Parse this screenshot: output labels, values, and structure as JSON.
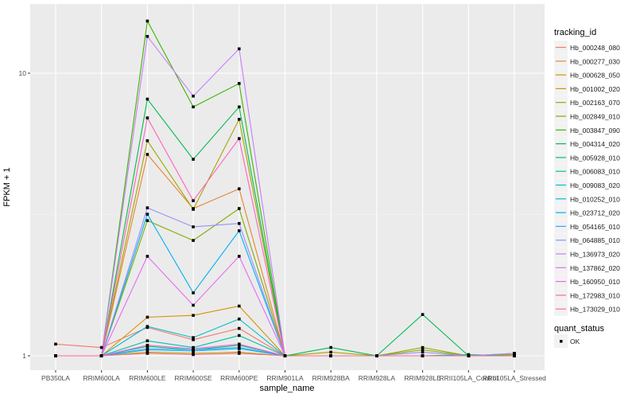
{
  "chart_data": {
    "type": "line",
    "title": "",
    "xlabel": "sample_name",
    "ylabel": "FPKM + 1",
    "y_scale": "log10",
    "ylim": [
      0.95,
      17
    ],
    "y_ticks": [
      1,
      10
    ],
    "y_tick_labels": [
      "1",
      "10"
    ],
    "grid": true,
    "legend_placement": "right",
    "categories": [
      "PB350LA",
      "RRIM600LA",
      "RRIM600LE",
      "RRIM600SE",
      "RRIM600PE",
      "RRIM901LA",
      "RRIM928BA",
      "RRIM928LA",
      "RRIM928LE",
      "RRII105LA_Control",
      "RRII105LA_Stressed"
    ],
    "legend_title": "tracking_id",
    "shape_legend_title": "quant_status",
    "shape_legend_entries": [
      "OK"
    ],
    "series": [
      {
        "name": "Hb_000248_080",
        "color": "#F8766D",
        "values": [
          1.1,
          1.07,
          1.26,
          1.14,
          1.25,
          1.0,
          1.0,
          1.0,
          1.0,
          1.0,
          1.01
        ]
      },
      {
        "name": "Hb_000277_030",
        "color": "#EA8331",
        "values": [
          1.0,
          1.0,
          5.16,
          3.32,
          3.9,
          1.0,
          1.0,
          1.0,
          1.0,
          1.0,
          1.0
        ]
      },
      {
        "name": "Hb_000628_050",
        "color": "#D89000",
        "values": [
          1.0,
          1.0,
          1.37,
          1.39,
          1.5,
          1.0,
          1.0,
          1.0,
          1.0,
          1.0,
          1.0
        ]
      },
      {
        "name": "Hb_001002_020",
        "color": "#C09B00",
        "values": [
          1.0,
          1.0,
          1.03,
          1.02,
          1.03,
          1.0,
          1.0,
          1.0,
          1.0,
          1.0,
          1.02
        ]
      },
      {
        "name": "Hb_002163_070",
        "color": "#A3A500",
        "values": [
          1.0,
          1.0,
          5.77,
          3.3,
          6.87,
          1.0,
          1.03,
          1.0,
          1.07,
          1.0,
          1.01
        ]
      },
      {
        "name": "Hb_002849_010",
        "color": "#7CAE00",
        "values": [
          1.0,
          1.0,
          3.01,
          2.56,
          3.32,
          1.0,
          1.0,
          1.0,
          1.05,
          1.0,
          1.0
        ]
      },
      {
        "name": "Hb_003847_090",
        "color": "#39B600",
        "values": [
          1.0,
          1.0,
          15.3,
          7.6,
          9.2,
          1.0,
          1.0,
          1.0,
          1.0,
          1.0,
          1.0
        ]
      },
      {
        "name": "Hb_004314_020",
        "color": "#00BB4E",
        "values": [
          1.0,
          1.0,
          8.1,
          4.96,
          7.6,
          1.0,
          1.07,
          1.0,
          1.4,
          1.0,
          1.0
        ]
      },
      {
        "name": "Hb_005928_010",
        "color": "#00BF7D",
        "values": [
          1.0,
          1.0,
          1.08,
          1.05,
          1.09,
          1.0,
          1.0,
          1.0,
          1.0,
          1.01,
          1.0
        ]
      },
      {
        "name": "Hb_006083_010",
        "color": "#00C1A3",
        "values": [
          1.0,
          1.0,
          1.13,
          1.07,
          1.18,
          1.0,
          1.0,
          1.0,
          1.0,
          1.0,
          1.0
        ]
      },
      {
        "name": "Hb_009083_020",
        "color": "#00BFC4",
        "values": [
          1.0,
          1.0,
          1.27,
          1.16,
          1.35,
          1.0,
          1.0,
          1.0,
          1.0,
          1.0,
          1.0
        ]
      },
      {
        "name": "Hb_010252_010",
        "color": "#00BAE0",
        "values": [
          1.0,
          1.0,
          1.05,
          1.04,
          1.06,
          1.0,
          1.0,
          1.0,
          1.0,
          1.0,
          1.0
        ]
      },
      {
        "name": "Hb_023712_020",
        "color": "#00B0F6",
        "values": [
          1.0,
          1.0,
          3.17,
          1.67,
          2.77,
          1.0,
          1.0,
          1.0,
          1.0,
          1.0,
          1.0
        ]
      },
      {
        "name": "Hb_054165_010",
        "color": "#35A2FF",
        "values": [
          1.0,
          1.0,
          1.06,
          1.05,
          1.07,
          1.0,
          1.0,
          1.0,
          1.0,
          1.0,
          1.0
        ]
      },
      {
        "name": "Hb_064885_010",
        "color": "#9590FF",
        "values": [
          1.0,
          1.0,
          3.34,
          2.86,
          2.94,
          1.0,
          1.0,
          1.0,
          1.03,
          1.0,
          1.02
        ]
      },
      {
        "name": "Hb_136973_020",
        "color": "#C77CFF",
        "values": [
          1.0,
          1.0,
          13.5,
          8.3,
          12.2,
          1.0,
          1.0,
          1.0,
          1.0,
          1.0,
          1.0
        ]
      },
      {
        "name": "Hb_137862_020",
        "color": "#E76BF3",
        "values": [
          1.0,
          1.0,
          2.25,
          1.51,
          2.25,
          1.0,
          1.0,
          1.0,
          1.0,
          1.0,
          1.0
        ]
      },
      {
        "name": "Hb_160950_010",
        "color": "#FA62DB",
        "values": [
          1.0,
          1.0,
          1.09,
          1.06,
          1.1,
          1.0,
          1.0,
          1.0,
          1.0,
          1.0,
          1.0
        ]
      },
      {
        "name": "Hb_172983_010",
        "color": "#FF62BC",
        "values": [
          1.0,
          1.0,
          6.95,
          3.54,
          5.87,
          1.0,
          1.0,
          1.0,
          1.0,
          1.0,
          1.0
        ]
      },
      {
        "name": "Hb_173029_010",
        "color": "#FF6C91",
        "values": [
          1.0,
          1.0,
          1.02,
          1.01,
          1.02,
          1.0,
          1.0,
          1.0,
          1.0,
          1.0,
          1.0
        ]
      }
    ]
  }
}
